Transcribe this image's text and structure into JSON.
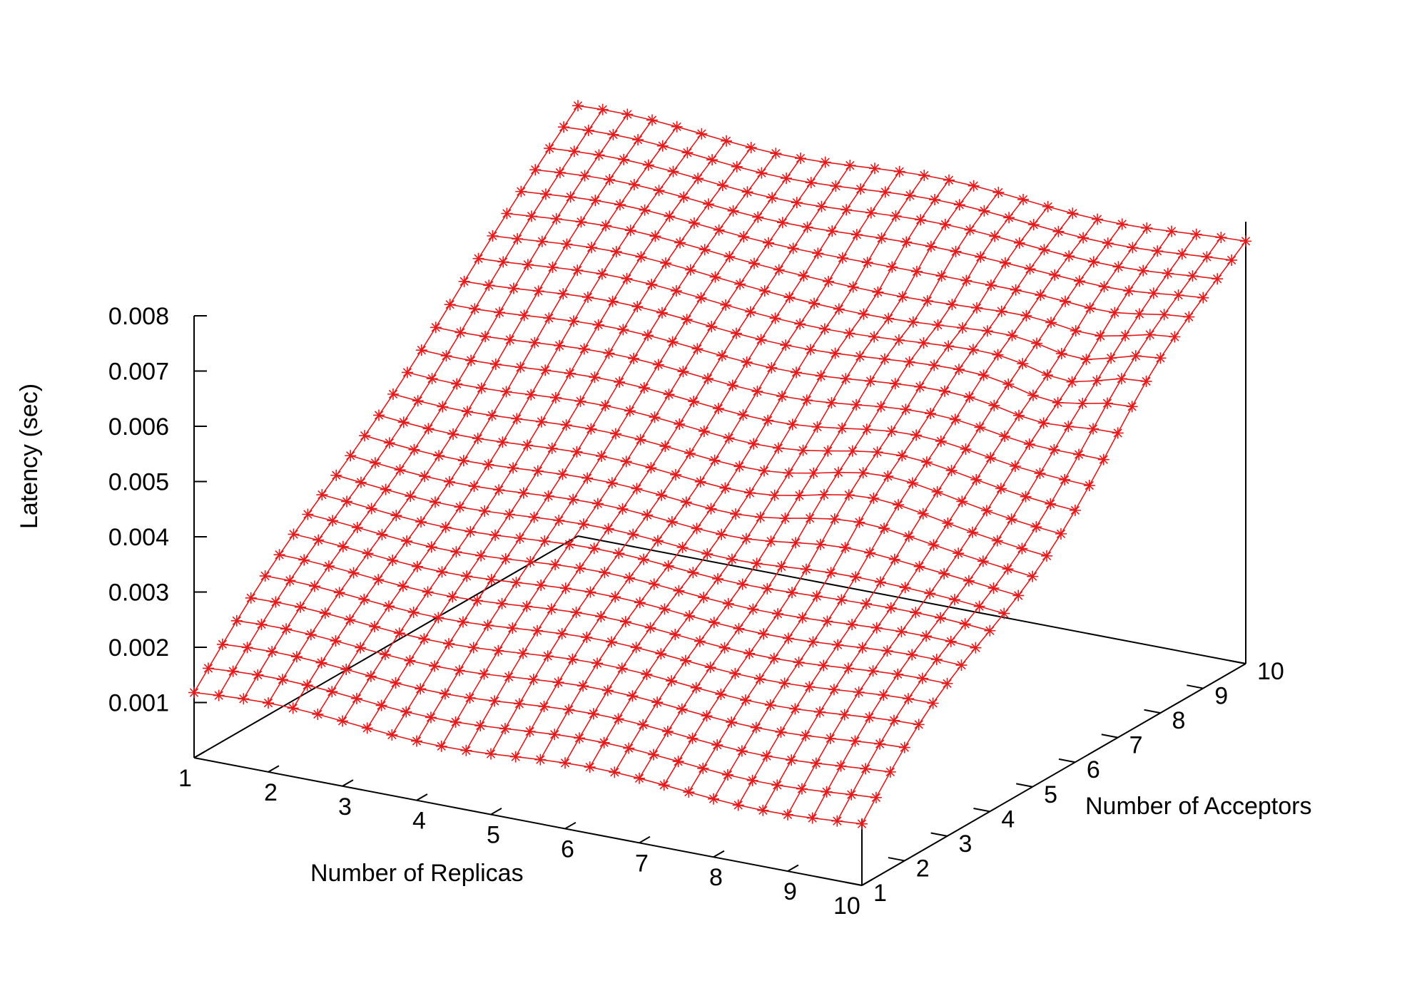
{
  "chart_data": {
    "type": "surface3d",
    "title": "",
    "series_color": "#e41a1c",
    "marker": "asterisk",
    "x_axis": {
      "label": "Number of Replicas",
      "range": [
        1,
        10
      ],
      "ticks": [
        "1",
        "2",
        "3",
        "4",
        "5",
        "6",
        "7",
        "8",
        "9",
        "10"
      ]
    },
    "y_axis": {
      "label": "Number of Acceptors",
      "range": [
        1,
        10
      ],
      "ticks": [
        "1",
        "2",
        "3",
        "4",
        "5",
        "6",
        "7",
        "8",
        "9",
        "10"
      ]
    },
    "z_axis": {
      "label": "Latency (sec)",
      "range": [
        0,
        0.008
      ],
      "ticks": [
        "0.001",
        "0.002",
        "0.003",
        "0.004",
        "0.005",
        "0.006",
        "0.007",
        "0.008"
      ]
    },
    "grid_points_per_axis": 28,
    "surface_corners": {
      "replicas_1_acceptors_1": 0.00121,
      "replicas_10_acceptors_1": 0.00114,
      "replicas_1_acceptors_10": 0.0078,
      "replicas_10_acceptors_10": 0.00762
    },
    "description_trend": "latency rises mainly with number of acceptors, nearly flat in number of replicas, with wave-like ridges at high acceptor counts"
  }
}
